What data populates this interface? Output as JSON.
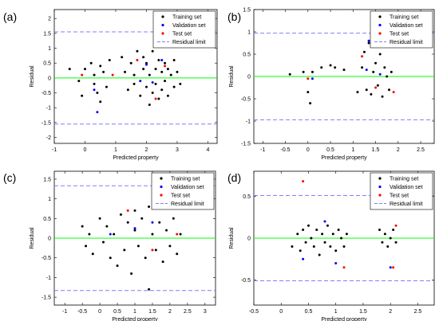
{
  "figure": {
    "panels": [
      {
        "label": "(a)"
      },
      {
        "label": "(b)"
      },
      {
        "label": "(c)"
      },
      {
        "label": "(d)"
      }
    ]
  },
  "colors": {
    "training": "#000000",
    "validation": "#0000ff",
    "test": "#ff0000",
    "residual_limit": "#7f7fff",
    "zero_line": "#00ff00"
  },
  "chart_data": [
    {
      "type": "scatter",
      "panel": "(a)",
      "xlabel": "Predicted property",
      "ylabel": "Residual",
      "xlim": [
        -1,
        4.3
      ],
      "ylim": [
        -2.2,
        2.3
      ],
      "xticks": [
        -1,
        0,
        1,
        2,
        3,
        4
      ],
      "yticks": [
        -2,
        -1.5,
        -1,
        -0.5,
        0,
        0.5,
        1,
        1.5,
        2
      ],
      "residual_limit": 1.55,
      "legend": [
        "Training set",
        "Validation set",
        "Test set",
        "Residual limit"
      ],
      "legend_position": "top-right",
      "series": [
        {
          "name": "Training set",
          "points": [
            [
              -0.5,
              0.3
            ],
            [
              -0.2,
              -0.1
            ],
            [
              -0.1,
              -0.6
            ],
            [
              0,
              0.3
            ],
            [
              0.2,
              0.5
            ],
            [
              0.3,
              0.1
            ],
            [
              0.3,
              -0.2
            ],
            [
              0.4,
              -0.5
            ],
            [
              0.5,
              0.4
            ],
            [
              0.5,
              -0.8
            ],
            [
              0.6,
              0.2
            ],
            [
              0.7,
              -0.3
            ],
            [
              0.8,
              0.6
            ],
            [
              1.2,
              0.7
            ],
            [
              1.3,
              0.2
            ],
            [
              1.4,
              -0.4
            ],
            [
              1.5,
              0.5
            ],
            [
              1.6,
              0.1
            ],
            [
              1.6,
              -0.2
            ],
            [
              1.7,
              0.9
            ],
            [
              1.8,
              -0.6
            ],
            [
              1.9,
              0.3
            ],
            [
              1.9,
              0.7
            ],
            [
              2,
              -0.3
            ],
            [
              2,
              0.5
            ],
            [
              2.1,
              0.1
            ],
            [
              2.1,
              -0.9
            ],
            [
              2.2,
              0.9
            ],
            [
              2.2,
              -0.5
            ],
            [
              2.3,
              0.3
            ],
            [
              2.3,
              -0.2
            ],
            [
              2.4,
              0.6
            ],
            [
              2.4,
              -0.7
            ],
            [
              2.5,
              0.2
            ],
            [
              2.5,
              -0.4
            ],
            [
              2.6,
              0.5
            ],
            [
              2.6,
              -0.1
            ],
            [
              2.7,
              -0.6
            ],
            [
              2.7,
              0.3
            ],
            [
              2.8,
              0.1
            ],
            [
              2.9,
              -0.3
            ],
            [
              2.9,
              0.6
            ],
            [
              3,
              0.2
            ],
            [
              3.1,
              -0.2
            ]
          ]
        },
        {
          "name": "Validation set",
          "points": [
            [
              0.3,
              -0.4
            ],
            [
              0.4,
              -1.15
            ],
            [
              1.8,
              -0.1
            ],
            [
              2,
              0.45
            ],
            [
              2.2,
              -0.15
            ],
            [
              2.5,
              0.6
            ]
          ]
        },
        {
          "name": "Test set",
          "points": [
            [
              -0.1,
              0.1
            ],
            [
              0.9,
              0.1
            ],
            [
              1.7,
              0.6
            ],
            [
              2.3,
              -0.7
            ],
            [
              2.6,
              0.4
            ]
          ]
        }
      ]
    },
    {
      "type": "scatter",
      "panel": "(b)",
      "xlabel": "Predicted property",
      "ylabel": "Residual",
      "xlim": [
        -1.2,
        2.8
      ],
      "ylim": [
        -1.5,
        1.5
      ],
      "xticks": [
        -1,
        -0.5,
        0,
        0.5,
        1,
        1.5,
        2,
        2.5
      ],
      "yticks": [
        -1.5,
        -1,
        -0.5,
        0,
        0.5,
        1,
        1.5
      ],
      "residual_limit": 0.97,
      "legend": [
        "Training set",
        "Validation set",
        "Test set",
        "Residual limit"
      ],
      "legend_position": "top-right",
      "series": [
        {
          "name": "Training set",
          "points": [
            [
              -0.4,
              0.05
            ],
            [
              -0.1,
              0.1
            ],
            [
              0,
              -0.35
            ],
            [
              0.05,
              -0.6
            ],
            [
              0.1,
              0.1
            ],
            [
              0.3,
              0.2
            ],
            [
              0.5,
              0.25
            ],
            [
              0.6,
              0.2
            ],
            [
              0.8,
              0.15
            ],
            [
              1.1,
              -0.35
            ],
            [
              1.2,
              0.2
            ],
            [
              1.25,
              0.55
            ],
            [
              1.3,
              -0.3
            ],
            [
              1.35,
              0.75
            ],
            [
              1.4,
              -0.4
            ],
            [
              1.45,
              0.1
            ],
            [
              1.5,
              0.3
            ],
            [
              1.55,
              -0.2
            ],
            [
              1.6,
              0.5
            ],
            [
              1.65,
              -0.45
            ],
            [
              1.7,
              0.2
            ],
            [
              1.75,
              0.0
            ],
            [
              1.8,
              -0.3
            ],
            [
              1.85,
              0.1
            ]
          ]
        },
        {
          "name": "Validation set",
          "points": [
            [
              0.1,
              -0.05
            ],
            [
              1.3,
              0.15
            ],
            [
              1.35,
              0.8
            ],
            [
              1.6,
              0.05
            ]
          ]
        },
        {
          "name": "Test set",
          "points": [
            [
              0,
              -0.05
            ],
            [
              1.2,
              0.45
            ],
            [
              1.5,
              -0.25
            ],
            [
              1.9,
              -0.35
            ]
          ]
        }
      ]
    },
    {
      "type": "scatter",
      "panel": "(c)",
      "xlabel": "Predicted property",
      "ylabel": "Residual",
      "xlim": [
        -1.3,
        3.3
      ],
      "ylim": [
        -1.7,
        1.7
      ],
      "xticks": [
        -1,
        -0.5,
        0,
        0.5,
        1,
        1.5,
        2,
        2.5,
        3
      ],
      "yticks": [
        -1.5,
        -1,
        -0.5,
        0,
        0.5,
        1,
        1.5
      ],
      "residual_limit": 1.33,
      "legend": [
        "Training set",
        "Validation set",
        "Test set",
        "Residual limit"
      ],
      "legend_position": "top-right",
      "series": [
        {
          "name": "Training set",
          "points": [
            [
              -0.5,
              0.3
            ],
            [
              -0.4,
              -0.2
            ],
            [
              -0.3,
              0.1
            ],
            [
              -0.2,
              -0.4
            ],
            [
              0,
              0.5
            ],
            [
              0.1,
              -0.1
            ],
            [
              0.2,
              0.3
            ],
            [
              0.3,
              -0.5
            ],
            [
              0.4,
              0.1
            ],
            [
              0.5,
              -0.7
            ],
            [
              0.6,
              0.6
            ],
            [
              0.7,
              -0.3
            ],
            [
              0.8,
              0.4
            ],
            [
              0.9,
              -0.9
            ],
            [
              1,
              0.7
            ],
            [
              1,
              0.2
            ],
            [
              1.1,
              -0.2
            ],
            [
              1.2,
              0.5
            ],
            [
              1.3,
              -0.5
            ],
            [
              1.4,
              0.8
            ],
            [
              1.4,
              -1.3
            ],
            [
              1.5,
              0.1
            ],
            [
              1.6,
              -0.3
            ],
            [
              1.7,
              0.4
            ],
            [
              1.8,
              -0.6
            ],
            [
              1.9,
              0.2
            ],
            [
              2,
              -0.2
            ],
            [
              2.1,
              0.5
            ],
            [
              2.2,
              -0.4
            ],
            [
              2.3,
              0.1
            ]
          ]
        },
        {
          "name": "Validation set",
          "points": [
            [
              0.3,
              0.1
            ],
            [
              1,
              0.25
            ],
            [
              1.5,
              0.4
            ]
          ]
        },
        {
          "name": "Test set",
          "points": [
            [
              0.8,
              0.7
            ],
            [
              1.5,
              -0.3
            ],
            [
              2.2,
              0.1
            ]
          ]
        }
      ]
    },
    {
      "type": "scatter",
      "panel": "(d)",
      "xlabel": "Predicted property",
      "ylabel": "Residual",
      "xlim": [
        -0.5,
        2.8
      ],
      "ylim": [
        -0.8,
        0.8
      ],
      "xticks": [
        -0.5,
        0,
        0.5,
        1,
        1.5,
        2,
        2.5
      ],
      "yticks": [
        -0.5,
        0,
        0.5
      ],
      "residual_limit": 0.51,
      "legend": [
        "Training set",
        "Validation set",
        "Test set",
        "Residual limit"
      ],
      "legend_position": "top-right",
      "series": [
        {
          "name": "Training set",
          "points": [
            [
              0.2,
              -0.1
            ],
            [
              0.3,
              0.05
            ],
            [
              0.35,
              -0.15
            ],
            [
              0.4,
              0.1
            ],
            [
              0.45,
              -0.05
            ],
            [
              0.5,
              0.15
            ],
            [
              0.55,
              0.0
            ],
            [
              0.6,
              -0.1
            ],
            [
              0.65,
              0.1
            ],
            [
              0.7,
              -0.2
            ],
            [
              0.75,
              0.05
            ],
            [
              0.8,
              -0.05
            ],
            [
              0.85,
              0.15
            ],
            [
              0.9,
              -0.1
            ],
            [
              0.95,
              0.05
            ],
            [
              1,
              -0.15
            ],
            [
              1.05,
              0.1
            ],
            [
              1.1,
              0.0
            ],
            [
              1.15,
              -0.1
            ],
            [
              1.2,
              0.05
            ],
            [
              1.8,
              0.1
            ],
            [
              1.85,
              -0.05
            ],
            [
              1.9,
              0.05
            ],
            [
              1.95,
              -0.1
            ],
            [
              2,
              0.0
            ],
            [
              2.05,
              0.1
            ],
            [
              2.1,
              -0.05
            ]
          ]
        },
        {
          "name": "Validation set",
          "points": [
            [
              0.4,
              -0.25
            ],
            [
              0.8,
              0.2
            ],
            [
              1.0,
              -0.3
            ],
            [
              2.0,
              -0.35
            ]
          ]
        },
        {
          "name": "Test set",
          "points": [
            [
              0.4,
              0.68
            ],
            [
              1.15,
              -0.35
            ],
            [
              2.05,
              -0.35
            ],
            [
              2.1,
              0.15
            ]
          ]
        }
      ]
    }
  ]
}
